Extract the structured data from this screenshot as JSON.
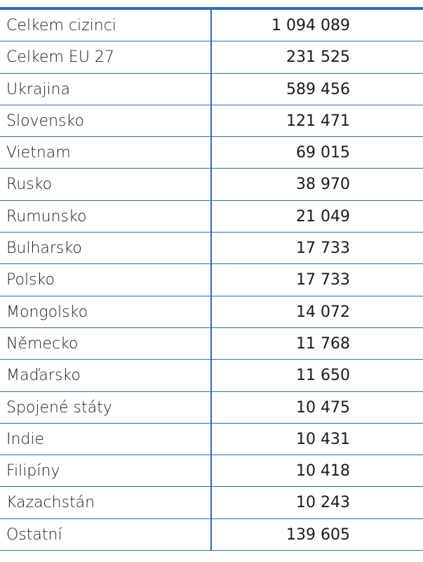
{
  "table": {
    "rows": [
      [
        "Celkem cizinci",
        "1 094 089"
      ],
      [
        "Celkem EU 27",
        "231 525"
      ],
      [
        "Ukrajina",
        "589 456"
      ],
      [
        "Slovensko",
        "121 471"
      ],
      [
        "Vietnam",
        "69 015"
      ],
      [
        "Rusko",
        "38 970"
      ],
      [
        "Rumunsko",
        "21 049"
      ],
      [
        "Bulharsko",
        "17 733"
      ],
      [
        "Polsko",
        "17 733"
      ],
      [
        "Mongolsko",
        "14 072"
      ],
      [
        "Německo",
        "11 768"
      ],
      [
        "Maďarsko",
        "11 650"
      ],
      [
        "Spojené státy",
        "10 475"
      ],
      [
        "Indie",
        "10 431"
      ],
      [
        "Filipíny",
        "10 418"
      ],
      [
        "Kazachstán",
        "10 243"
      ],
      [
        "Ostatní",
        "139 605"
      ]
    ]
  }
}
